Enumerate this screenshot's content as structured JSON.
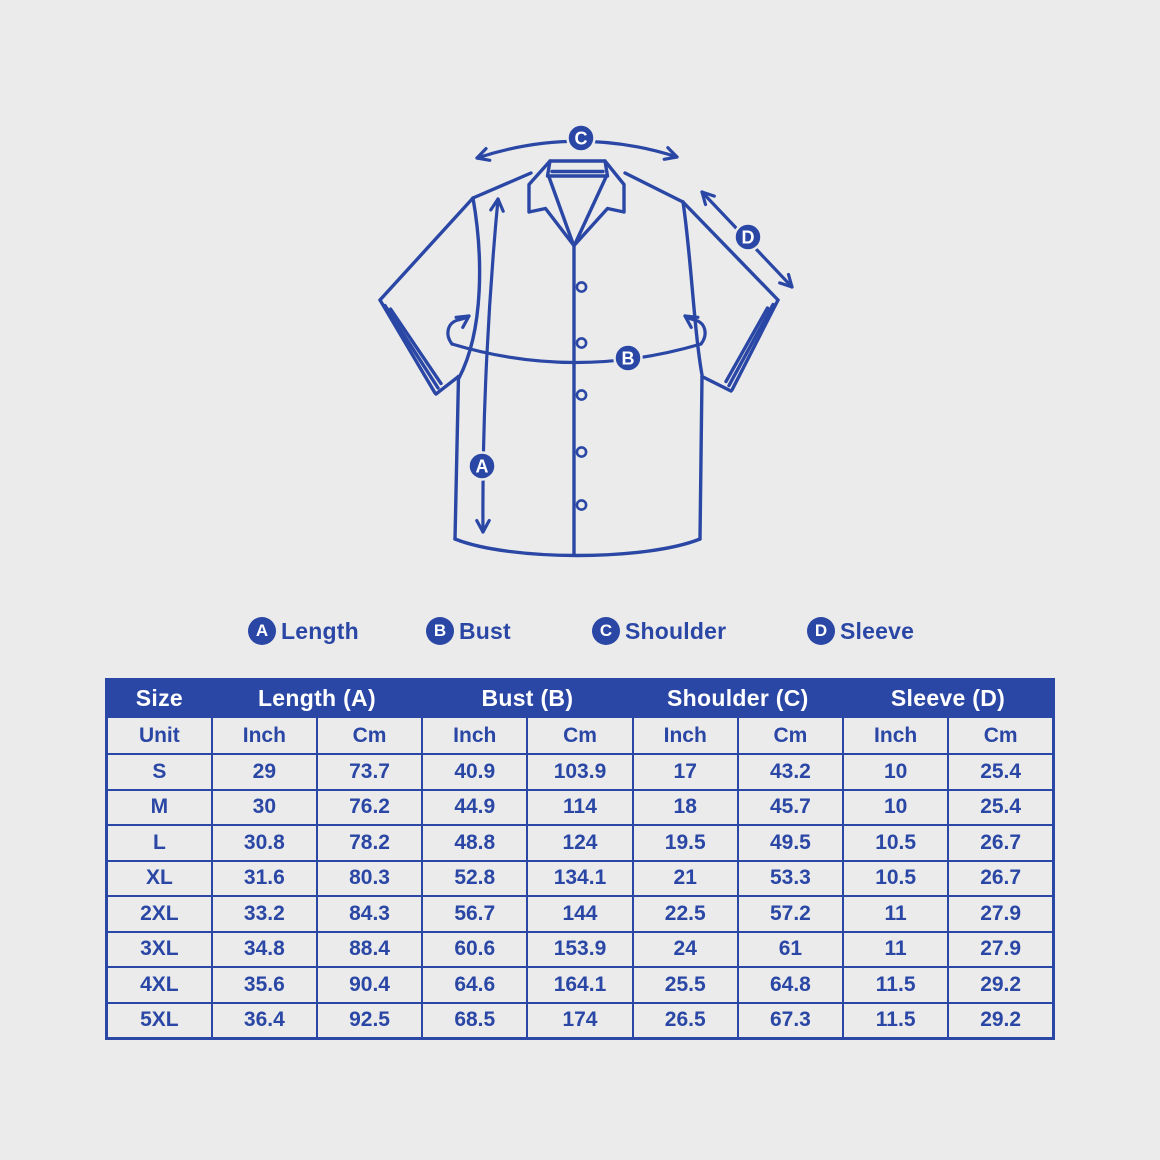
{
  "colors": {
    "accent": "#2a47a5",
    "background": "#ebebeb",
    "header_text": "#ffffff"
  },
  "diagram": {
    "badge_a": "A",
    "badge_b": "B",
    "badge_c": "C",
    "badge_d": "D"
  },
  "legend": {
    "items": [
      {
        "badge": "A",
        "label": "Length"
      },
      {
        "badge": "B",
        "label": "Bust"
      },
      {
        "badge": "C",
        "label": "Shoulder"
      },
      {
        "badge": "D",
        "label": "Sleeve"
      }
    ]
  },
  "table": {
    "header": {
      "size": "Size",
      "length": "Length (A)",
      "bust": "Bust (B)",
      "shoulder": "Shoulder (C)",
      "sleeve": "Sleeve (D)"
    },
    "unit_row": [
      "Unit",
      "Inch",
      "Cm",
      "Inch",
      "Cm",
      "Inch",
      "Cm",
      "Inch",
      "Cm"
    ],
    "rows": [
      {
        "size": "S",
        "values": [
          "29",
          "73.7",
          "40.9",
          "103.9",
          "17",
          "43.2",
          "10",
          "25.4"
        ]
      },
      {
        "size": "M",
        "values": [
          "30",
          "76.2",
          "44.9",
          "114",
          "18",
          "45.7",
          "10",
          "25.4"
        ]
      },
      {
        "size": "L",
        "values": [
          "30.8",
          "78.2",
          "48.8",
          "124",
          "19.5",
          "49.5",
          "10.5",
          "26.7"
        ]
      },
      {
        "size": "XL",
        "values": [
          "31.6",
          "80.3",
          "52.8",
          "134.1",
          "21",
          "53.3",
          "10.5",
          "26.7"
        ]
      },
      {
        "size": "2XL",
        "values": [
          "33.2",
          "84.3",
          "56.7",
          "144",
          "22.5",
          "57.2",
          "11",
          "27.9"
        ]
      },
      {
        "size": "3XL",
        "values": [
          "34.8",
          "88.4",
          "60.6",
          "153.9",
          "24",
          "61",
          "11",
          "27.9"
        ]
      },
      {
        "size": "4XL",
        "values": [
          "35.6",
          "90.4",
          "64.6",
          "164.1",
          "25.5",
          "64.8",
          "11.5",
          "29.2"
        ]
      },
      {
        "size": "5XL",
        "values": [
          "36.4",
          "92.5",
          "68.5",
          "174",
          "26.5",
          "67.3",
          "11.5",
          "29.2"
        ]
      }
    ]
  }
}
